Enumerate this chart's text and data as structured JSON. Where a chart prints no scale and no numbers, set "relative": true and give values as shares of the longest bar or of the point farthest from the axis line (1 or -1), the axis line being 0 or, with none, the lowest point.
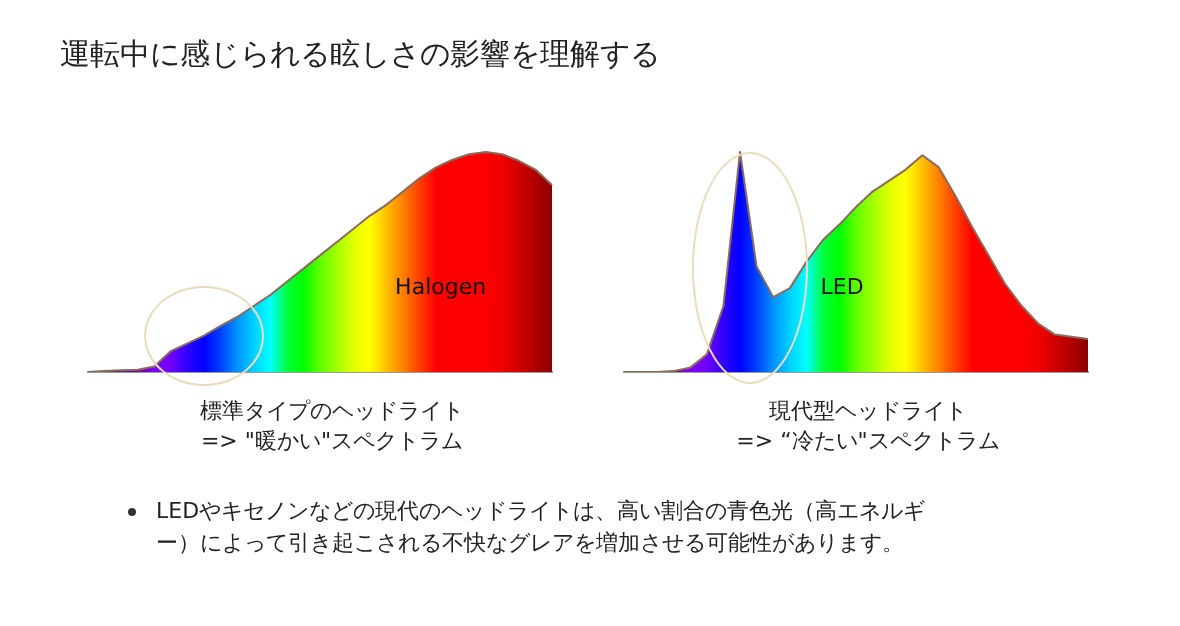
{
  "chart_data": [
    {
      "type": "area",
      "relative": true,
      "title": "運転中に感じられる眩しさの影響を理解する",
      "categories": [
        null,
        null,
        null,
        null,
        null,
        null,
        null,
        null,
        null,
        null,
        null,
        null,
        null,
        null,
        null,
        null,
        null,
        null,
        null,
        null,
        null,
        null,
        null,
        null,
        null,
        null,
        null,
        null,
        null
      ],
      "color": "#8a6a5a",
      "values": [
        0,
        0.005,
        0.008,
        0.01,
        0.025,
        0.095,
        0.13,
        0.165,
        0.21,
        0.25,
        0.3,
        0.35,
        0.41,
        0.47,
        0.53,
        0.59,
        0.65,
        0.71,
        0.76,
        0.82,
        0.88,
        0.93,
        0.965,
        0.99,
        1,
        0.99,
        0.96,
        0.92,
        0.85
      ],
      "colors": [
        "#3a1060",
        "#4a1070",
        "#5a1080",
        "#6a0a90",
        "#8000ff",
        "#7000ff",
        "#3000ff",
        "#0000ff",
        "#0040ff",
        "#0090ff",
        "#00d0ff",
        "#00ffff",
        "#00ff40",
        "#00ff00",
        "#60ff00",
        "#a0ff00",
        "#e0ff00",
        "#ffff00",
        "#ffc000",
        "#ff8000",
        "#ff4000",
        "#ff0000",
        "#ff0000",
        "#ff0000",
        "#ff0000",
        "#f00000",
        "#d00000",
        "#b00000",
        "#8b0000"
      ],
      "annotations": [
        "Halogen",
        "標準タイプのヘッドライト",
        "=> \"暖かい\"スペクトラム"
      ]
    },
    {
      "type": "area",
      "relative": true,
      "categories": [
        null,
        null,
        null,
        null,
        null,
        null,
        null,
        null,
        null,
        null,
        null,
        null,
        null,
        null,
        null,
        null,
        null,
        null,
        null,
        null,
        null,
        null,
        null,
        null,
        null,
        null,
        null,
        null,
        null
      ],
      "color": "#8a6a5a",
      "values": [
        0,
        0,
        0,
        0.004,
        0.02,
        0.08,
        0.3,
        1,
        0.48,
        0.34,
        0.38,
        0.5,
        0.6,
        0.67,
        0.75,
        0.82,
        0.87,
        0.92,
        0.985,
        0.93,
        0.8,
        0.66,
        0.53,
        0.4,
        0.3,
        0.22,
        0.17,
        0.16,
        0.15
      ],
      "colors": [
        "#3a1060",
        "#4a1070",
        "#5a1080",
        "#6a0a90",
        "#8000ff",
        "#7000ff",
        "#3000ff",
        "#0000ff",
        "#0040ff",
        "#0090ff",
        "#00d0ff",
        "#00ffff",
        "#00ff40",
        "#00ff00",
        "#60ff00",
        "#a0ff00",
        "#e0ff00",
        "#ffff00",
        "#ffc000",
        "#ff8000",
        "#ff4000",
        "#ff0000",
        "#ff0000",
        "#ff0000",
        "#ff0000",
        "#f00000",
        "#d00000",
        "#b00000",
        "#8b0000"
      ],
      "annotations": [
        "LED",
        "現代型ヘッドライト",
        "=> “冷たい\"スペクトラム",
        "LEDやキセノンなどの現代のヘッドライトは、高い割合の青色光（高エネルギー）によって引き起こされる不快なグレアを増加させる可能性があります。"
      ]
    }
  ]
}
